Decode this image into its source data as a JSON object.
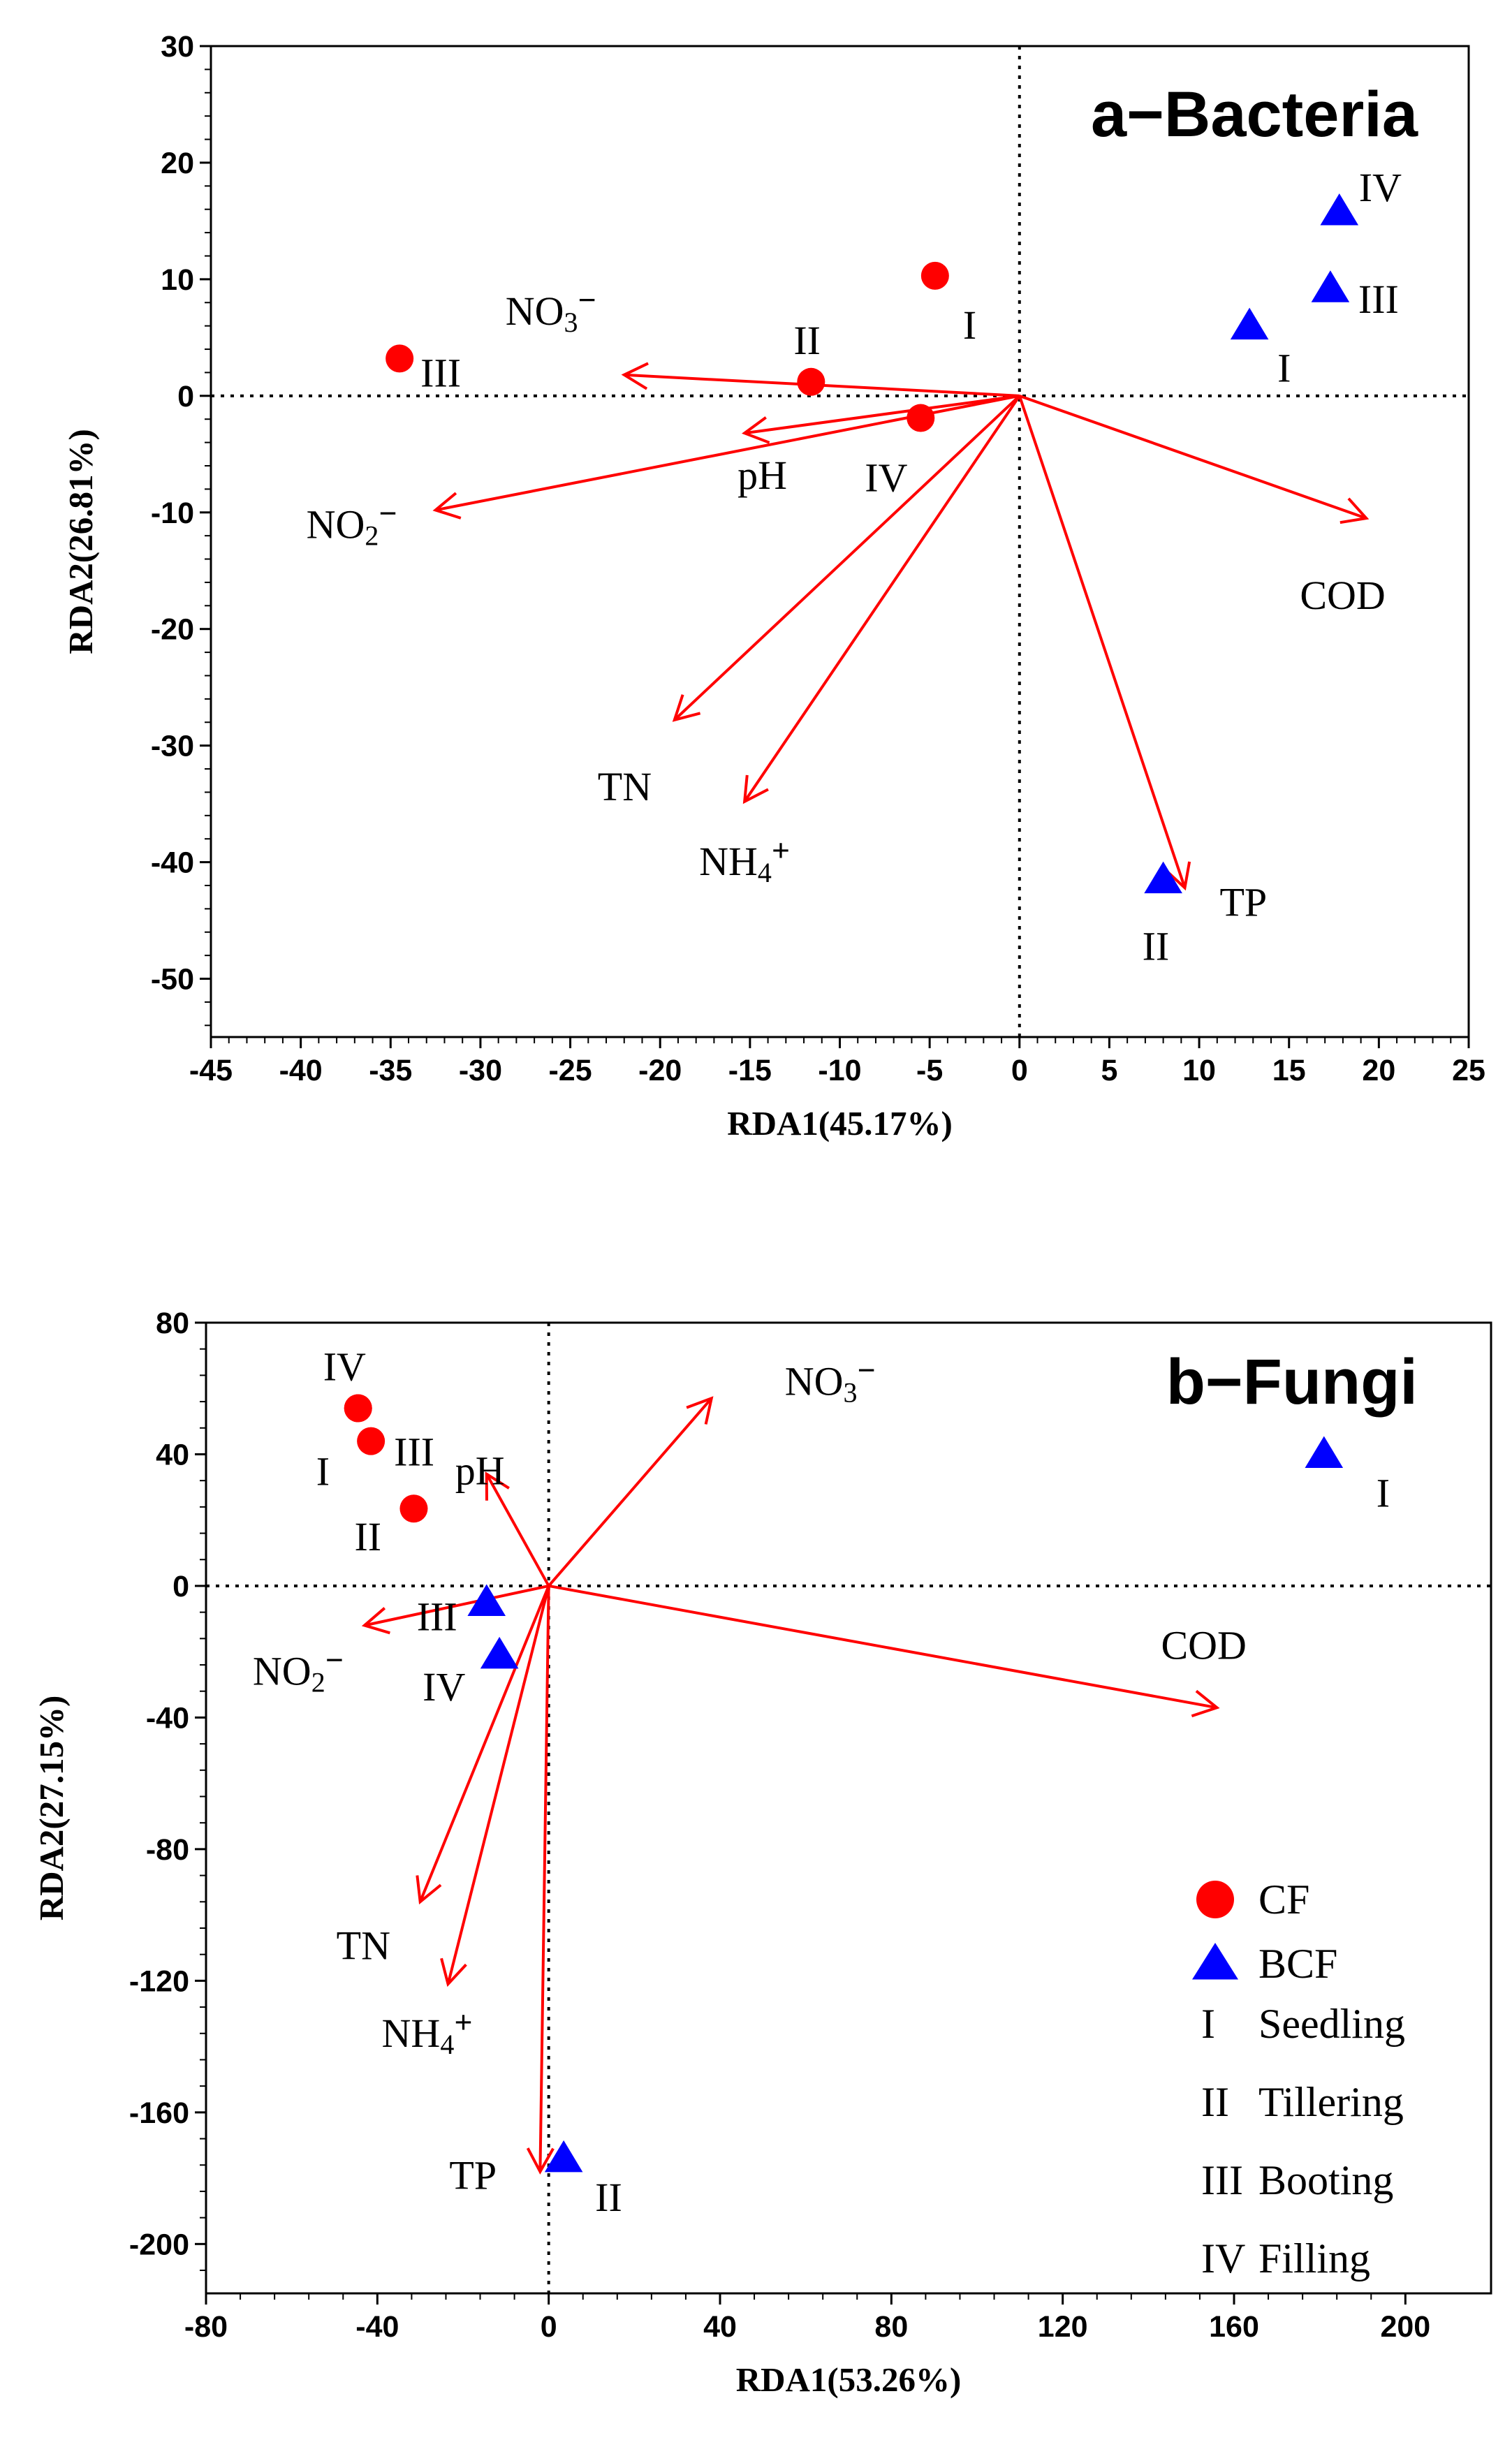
{
  "chart_data": [
    {
      "type": "scatter",
      "title": "a−Bacteria",
      "xlabel": "RDA1(45.17%)",
      "ylabel": "RDA2(26.81%)",
      "xlim": [
        -45,
        25
      ],
      "ylim": [
        -55,
        30
      ],
      "xticks": [
        -45,
        -40,
        -35,
        -30,
        -25,
        -20,
        -15,
        -10,
        -5,
        0,
        5,
        10,
        15,
        20,
        25
      ],
      "yticks": [
        -50,
        -40,
        -30,
        -20,
        -10,
        0,
        10,
        20,
        30
      ],
      "grid": false,
      "series": [
        {
          "name": "CF",
          "marker": "circle",
          "color": "#ff0000",
          "points": [
            {
              "label": "I",
              "x": -4.7,
              "y": 10.3
            },
            {
              "label": "II",
              "x": -11.6,
              "y": 1.2
            },
            {
              "label": "III",
              "x": -34.5,
              "y": 3.2
            },
            {
              "label": "IV",
              "x": -5.5,
              "y": -1.9
            }
          ]
        },
        {
          "name": "BCF",
          "marker": "triangle",
          "color": "#0000ff",
          "points": [
            {
              "label": "I",
              "x": 12.8,
              "y": 6.0
            },
            {
              "label": "II",
              "x": 8.0,
              "y": -41.5
            },
            {
              "label": "III",
              "x": 17.3,
              "y": 9.2
            },
            {
              "label": "IV",
              "x": 17.8,
              "y": 15.8
            }
          ]
        }
      ],
      "vectors": [
        {
          "label": "NO3⁻",
          "x": -22.0,
          "y": 1.8
        },
        {
          "label": "pH",
          "x": -15.3,
          "y": -3.2
        },
        {
          "label": "NO2⁻",
          "x": -32.5,
          "y": -9.8
        },
        {
          "label": "COD",
          "x": 19.3,
          "y": -10.5
        },
        {
          "label": "TN",
          "x": -19.2,
          "y": -27.8
        },
        {
          "label": "NH4⁺",
          "x": -15.3,
          "y": -34.8
        },
        {
          "label": "TP",
          "x": 9.2,
          "y": -42.2
        }
      ],
      "vector_color": "#ff0000"
    },
    {
      "type": "scatter",
      "title": "b−Fungi",
      "xlabel": "RDA1(53.26%)",
      "ylabel": "RDA2(27.15%)",
      "xlim": [
        -80,
        220
      ],
      "ylim": [
        -215,
        80
      ],
      "xticks": [
        -80,
        -40,
        0,
        40,
        80,
        120,
        160,
        200
      ],
      "yticks": [
        -200,
        -160,
        -120,
        -80,
        -40,
        0,
        40,
        80
      ],
      "grid": false,
      "series": [
        {
          "name": "CF",
          "marker": "circle",
          "color": "#ff0000",
          "points": [
            {
              "label": "I",
              "x": -44.5,
              "y": 54.0
            },
            {
              "label": "II",
              "x": -31.5,
              "y": 23.5
            },
            {
              "label": "III",
              "x": -41.5,
              "y": 44.0
            },
            {
              "label": "IV",
              "x": -44.5,
              "y": 54.0
            }
          ]
        },
        {
          "name": "BCF",
          "marker": "triangle",
          "color": "#0000ff",
          "points": [
            {
              "label": "I",
              "x": 181.0,
              "y": 40.0
            },
            {
              "label": "II",
              "x": 3.5,
              "y": -174.0
            },
            {
              "label": "III",
              "x": -14.5,
              "y": -5.0
            },
            {
              "label": "IV",
              "x": -11.5,
              "y": -21.0
            }
          ]
        }
      ],
      "vectors": [
        {
          "label": "NO3⁻",
          "x": 38.0,
          "y": 57.0
        },
        {
          "label": "pH",
          "x": -14.5,
          "y": 34.0
        },
        {
          "label": "NO2⁻",
          "x": -43.0,
          "y": -12.0
        },
        {
          "label": "COD",
          "x": 156.0,
          "y": -37.0
        },
        {
          "label": "TN",
          "x": -30.0,
          "y": -96.0
        },
        {
          "label": "NH4⁺",
          "x": -23.5,
          "y": -121.0
        },
        {
          "label": "TP",
          "x": -2.0,
          "y": -178.0
        }
      ],
      "vector_color": "#ff0000",
      "legend": {
        "position": "bottom-right",
        "markers": [
          {
            "label": "CF",
            "marker": "circle",
            "color": "#ff0000"
          },
          {
            "label": "BCF",
            "marker": "triangle",
            "color": "#0000ff"
          }
        ],
        "stages": [
          {
            "numeral": "I",
            "label": "Seedling"
          },
          {
            "numeral": "II",
            "label": "Tillering"
          },
          {
            "numeral": "III",
            "label": "Booting"
          },
          {
            "numeral": "IV",
            "label": "Filling"
          }
        ]
      }
    }
  ]
}
